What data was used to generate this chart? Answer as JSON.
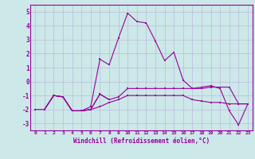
{
  "xlabel": "Windchill (Refroidissement éolien,°C)",
  "background_color": "#cce8e8",
  "grid_color": "#bbbbdd",
  "line_color": "#990099",
  "xlim": [
    -0.5,
    23.5
  ],
  "ylim": [
    -3.5,
    5.5
  ],
  "xticks": [
    0,
    1,
    2,
    3,
    4,
    5,
    6,
    7,
    8,
    9,
    10,
    11,
    12,
    13,
    14,
    15,
    16,
    17,
    18,
    19,
    20,
    21,
    22,
    23
  ],
  "yticks": [
    -3,
    -2,
    -1,
    0,
    1,
    2,
    3,
    4,
    5
  ],
  "series": [
    {
      "x": [
        1,
        2
      ],
      "y": [
        -2.0,
        -1.0
      ]
    },
    {
      "x": [
        2,
        3,
        4,
        5,
        6,
        7,
        8
      ],
      "y": [
        -1.0,
        -1.1,
        -2.1,
        -2.1,
        -2.0,
        -0.9,
        -1.3
      ]
    },
    {
      "x": [
        1,
        2,
        3,
        4,
        5,
        6,
        7,
        8,
        9,
        10,
        11,
        12,
        13,
        14,
        15,
        16,
        17,
        18,
        19,
        20,
        21,
        22,
        23
      ],
      "y": [
        -2.0,
        -1.0,
        -1.1,
        -2.1,
        -2.1,
        -2.0,
        -1.8,
        -1.5,
        -1.3,
        -1.0,
        -1.0,
        -1.0,
        -1.0,
        -1.0,
        -1.0,
        -1.0,
        -1.3,
        -1.4,
        -1.5,
        -1.5,
        -1.6,
        -1.6,
        -1.6
      ]
    },
    {
      "x": [
        1,
        2,
        3,
        4,
        5,
        6,
        7,
        8,
        9,
        10,
        11,
        12,
        13,
        14,
        15,
        16,
        17,
        18,
        19,
        20,
        21,
        22,
        23
      ],
      "y": [
        -2.0,
        -1.0,
        -1.1,
        -2.1,
        -2.1,
        -2.0,
        -0.9,
        -1.3,
        -1.1,
        -0.5,
        -0.5,
        -0.5,
        -0.5,
        -0.5,
        -0.5,
        -0.5,
        -0.5,
        -0.5,
        -0.4,
        -0.4,
        -0.4,
        -1.6,
        -1.6
      ]
    },
    {
      "x": [
        0,
        1,
        2,
        3,
        4,
        5,
        6,
        7,
        8,
        9,
        10,
        11,
        12,
        13,
        14,
        15,
        16,
        17,
        18,
        19,
        20,
        21,
        22,
        23
      ],
      "y": [
        -2.0,
        -2.0,
        -1.0,
        -1.1,
        -2.1,
        -2.1,
        -1.8,
        1.6,
        1.2,
        3.1,
        4.9,
        4.3,
        4.2,
        2.9,
        1.5,
        2.1,
        0.1,
        -0.5,
        -0.4,
        -0.3,
        -0.5,
        -2.1,
        -3.1,
        -1.6
      ]
    }
  ]
}
